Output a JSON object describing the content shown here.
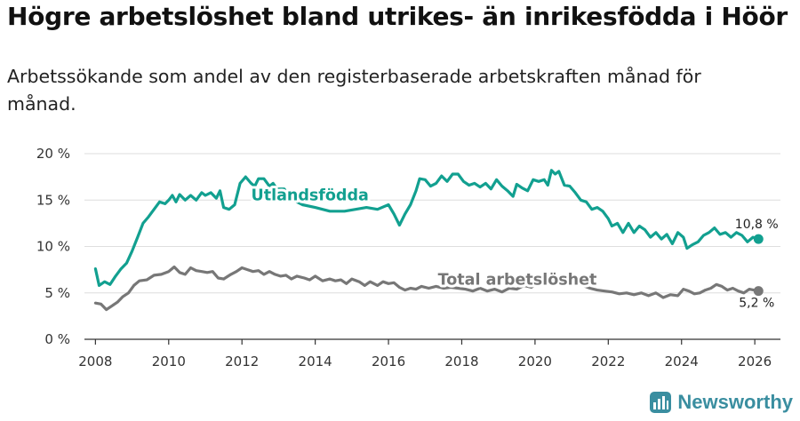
{
  "header": {
    "title": "Högre arbetslöshet bland utrikes- än inrikesfödda i Höör",
    "subtitle": "Arbetssökande som andel av den registerbaserade arbetskraften månad för månad."
  },
  "brand": {
    "name": "Newsworthy"
  },
  "colors": {
    "foreign": "#12a090",
    "total": "#777777",
    "grid": "#dedede",
    "axis": "#333333",
    "brand": "#3a8ea0"
  },
  "chart_data": {
    "type": "line",
    "title": "Högre arbetslöshet bland utrikes- än inrikesfödda i Höör",
    "xlabel": "",
    "ylabel": "",
    "xlim": [
      2007.7,
      2026.7
    ],
    "ylim": [
      0,
      20
    ],
    "x_ticks": [
      2008,
      2010,
      2012,
      2014,
      2016,
      2018,
      2020,
      2022,
      2024,
      2026
    ],
    "y_ticks": [
      0,
      5,
      10,
      15,
      20
    ],
    "y_tick_labels": [
      "0 %",
      "5 %",
      "10 %",
      "15 %",
      "20 %"
    ],
    "grid": true,
    "series": [
      {
        "name": "Utlandsfödda",
        "color": "#12a090",
        "points": [
          [
            2008.0,
            7.6
          ],
          [
            2008.1,
            5.8
          ],
          [
            2008.25,
            6.2
          ],
          [
            2008.4,
            5.9
          ],
          [
            2008.55,
            6.8
          ],
          [
            2008.7,
            7.6
          ],
          [
            2008.85,
            8.2
          ],
          [
            2009.0,
            9.5
          ],
          [
            2009.15,
            11.0
          ],
          [
            2009.3,
            12.5
          ],
          [
            2009.45,
            13.2
          ],
          [
            2009.6,
            14.0
          ],
          [
            2009.75,
            14.8
          ],
          [
            2009.9,
            14.6
          ],
          [
            2010.0,
            15.0
          ],
          [
            2010.1,
            15.5
          ],
          [
            2010.2,
            14.8
          ],
          [
            2010.3,
            15.6
          ],
          [
            2010.45,
            15.0
          ],
          [
            2010.6,
            15.5
          ],
          [
            2010.75,
            15.0
          ],
          [
            2010.9,
            15.8
          ],
          [
            2011.0,
            15.5
          ],
          [
            2011.15,
            15.8
          ],
          [
            2011.3,
            15.2
          ],
          [
            2011.4,
            16.0
          ],
          [
            2011.5,
            14.2
          ],
          [
            2011.65,
            14.0
          ],
          [
            2011.8,
            14.5
          ],
          [
            2011.95,
            16.8
          ],
          [
            2012.1,
            17.5
          ],
          [
            2012.25,
            16.8
          ],
          [
            2012.35,
            16.5
          ],
          [
            2012.45,
            17.3
          ],
          [
            2012.6,
            17.3
          ],
          [
            2012.75,
            16.5
          ],
          [
            2012.85,
            16.8
          ],
          [
            2012.95,
            16.2
          ],
          [
            2013.15,
            16.2
          ],
          [
            2013.4,
            15.0
          ],
          [
            2013.65,
            14.5
          ],
          [
            2014.0,
            14.2
          ],
          [
            2014.4,
            13.8
          ],
          [
            2014.8,
            13.8
          ],
          [
            2015.1,
            14.0
          ],
          [
            2015.4,
            14.2
          ],
          [
            2015.7,
            14.0
          ],
          [
            2016.0,
            14.5
          ],
          [
            2016.15,
            13.5
          ],
          [
            2016.3,
            12.3
          ],
          [
            2016.45,
            13.5
          ],
          [
            2016.6,
            14.5
          ],
          [
            2016.75,
            16.0
          ],
          [
            2016.85,
            17.3
          ],
          [
            2017.0,
            17.2
          ],
          [
            2017.15,
            16.5
          ],
          [
            2017.3,
            16.8
          ],
          [
            2017.45,
            17.6
          ],
          [
            2017.6,
            17.0
          ],
          [
            2017.75,
            17.8
          ],
          [
            2017.9,
            17.8
          ],
          [
            2018.05,
            17.0
          ],
          [
            2018.2,
            16.6
          ],
          [
            2018.35,
            16.8
          ],
          [
            2018.5,
            16.4
          ],
          [
            2018.65,
            16.8
          ],
          [
            2018.8,
            16.2
          ],
          [
            2018.95,
            17.2
          ],
          [
            2019.1,
            16.5
          ],
          [
            2019.25,
            16.0
          ],
          [
            2019.4,
            15.4
          ],
          [
            2019.5,
            16.7
          ],
          [
            2019.65,
            16.3
          ],
          [
            2019.8,
            16.0
          ],
          [
            2019.95,
            17.2
          ],
          [
            2020.1,
            17.0
          ],
          [
            2020.25,
            17.2
          ],
          [
            2020.35,
            16.6
          ],
          [
            2020.45,
            18.2
          ],
          [
            2020.55,
            17.8
          ],
          [
            2020.65,
            18.1
          ],
          [
            2020.8,
            16.6
          ],
          [
            2020.95,
            16.5
          ],
          [
            2021.1,
            15.8
          ],
          [
            2021.25,
            15.0
          ],
          [
            2021.4,
            14.8
          ],
          [
            2021.55,
            14.0
          ],
          [
            2021.7,
            14.2
          ],
          [
            2021.85,
            13.8
          ],
          [
            2022.0,
            13.0
          ],
          [
            2022.1,
            12.2
          ],
          [
            2022.25,
            12.5
          ],
          [
            2022.4,
            11.5
          ],
          [
            2022.55,
            12.5
          ],
          [
            2022.7,
            11.5
          ],
          [
            2022.85,
            12.2
          ],
          [
            2023.0,
            11.8
          ],
          [
            2023.15,
            11.0
          ],
          [
            2023.3,
            11.5
          ],
          [
            2023.45,
            10.8
          ],
          [
            2023.6,
            11.3
          ],
          [
            2023.75,
            10.3
          ],
          [
            2023.9,
            11.5
          ],
          [
            2024.05,
            11.0
          ],
          [
            2024.15,
            9.8
          ],
          [
            2024.3,
            10.2
          ],
          [
            2024.45,
            10.5
          ],
          [
            2024.6,
            11.2
          ],
          [
            2024.75,
            11.5
          ],
          [
            2024.9,
            12.0
          ],
          [
            2025.05,
            11.3
          ],
          [
            2025.2,
            11.5
          ],
          [
            2025.35,
            11.0
          ],
          [
            2025.5,
            11.5
          ],
          [
            2025.65,
            11.2
          ],
          [
            2025.8,
            10.5
          ],
          [
            2025.95,
            11.0
          ],
          [
            2026.1,
            10.8
          ]
        ],
        "end_label": "10,8 %"
      },
      {
        "name": "Total arbetslöshet",
        "color": "#777777",
        "points": [
          [
            2008.0,
            3.9
          ],
          [
            2008.15,
            3.8
          ],
          [
            2008.3,
            3.2
          ],
          [
            2008.45,
            3.6
          ],
          [
            2008.6,
            4.0
          ],
          [
            2008.75,
            4.6
          ],
          [
            2008.9,
            5.0
          ],
          [
            2009.05,
            5.8
          ],
          [
            2009.2,
            6.3
          ],
          [
            2009.4,
            6.4
          ],
          [
            2009.6,
            6.9
          ],
          [
            2009.8,
            7.0
          ],
          [
            2010.0,
            7.3
          ],
          [
            2010.15,
            7.8
          ],
          [
            2010.3,
            7.2
          ],
          [
            2010.45,
            7.0
          ],
          [
            2010.6,
            7.7
          ],
          [
            2010.75,
            7.4
          ],
          [
            2010.9,
            7.3
          ],
          [
            2011.05,
            7.2
          ],
          [
            2011.2,
            7.3
          ],
          [
            2011.35,
            6.6
          ],
          [
            2011.5,
            6.5
          ],
          [
            2011.7,
            7.0
          ],
          [
            2011.85,
            7.3
          ],
          [
            2012.0,
            7.7
          ],
          [
            2012.15,
            7.5
          ],
          [
            2012.3,
            7.3
          ],
          [
            2012.45,
            7.4
          ],
          [
            2012.6,
            7.0
          ],
          [
            2012.75,
            7.3
          ],
          [
            2012.9,
            7.0
          ],
          [
            2013.05,
            6.8
          ],
          [
            2013.2,
            6.9
          ],
          [
            2013.35,
            6.5
          ],
          [
            2013.5,
            6.8
          ],
          [
            2013.7,
            6.6
          ],
          [
            2013.85,
            6.4
          ],
          [
            2014.0,
            6.8
          ],
          [
            2014.2,
            6.3
          ],
          [
            2014.4,
            6.5
          ],
          [
            2014.55,
            6.3
          ],
          [
            2014.7,
            6.4
          ],
          [
            2014.85,
            6.0
          ],
          [
            2015.0,
            6.5
          ],
          [
            2015.2,
            6.2
          ],
          [
            2015.35,
            5.8
          ],
          [
            2015.5,
            6.2
          ],
          [
            2015.7,
            5.8
          ],
          [
            2015.85,
            6.2
          ],
          [
            2016.0,
            6.0
          ],
          [
            2016.15,
            6.1
          ],
          [
            2016.3,
            5.6
          ],
          [
            2016.45,
            5.3
          ],
          [
            2016.6,
            5.5
          ],
          [
            2016.75,
            5.4
          ],
          [
            2016.9,
            5.7
          ],
          [
            2017.1,
            5.5
          ],
          [
            2017.3,
            5.7
          ],
          [
            2017.5,
            5.5
          ],
          [
            2017.7,
            5.6
          ],
          [
            2017.9,
            5.5
          ],
          [
            2018.1,
            5.4
          ],
          [
            2018.3,
            5.2
          ],
          [
            2018.5,
            5.5
          ],
          [
            2018.7,
            5.2
          ],
          [
            2018.9,
            5.4
          ],
          [
            2019.1,
            5.1
          ],
          [
            2019.3,
            5.5
          ],
          [
            2019.5,
            5.4
          ],
          [
            2019.7,
            5.8
          ],
          [
            2019.9,
            5.6
          ],
          [
            2020.1,
            6.2
          ],
          [
            2020.3,
            6.0
          ],
          [
            2020.5,
            6.5
          ],
          [
            2020.7,
            6.2
          ],
          [
            2020.9,
            6.4
          ],
          [
            2021.1,
            6.0
          ],
          [
            2021.3,
            5.8
          ],
          [
            2021.5,
            5.5
          ],
          [
            2021.7,
            5.3
          ],
          [
            2021.9,
            5.2
          ],
          [
            2022.1,
            5.1
          ],
          [
            2022.3,
            4.9
          ],
          [
            2022.5,
            5.0
          ],
          [
            2022.7,
            4.8
          ],
          [
            2022.9,
            5.0
          ],
          [
            2023.1,
            4.7
          ],
          [
            2023.3,
            5.0
          ],
          [
            2023.5,
            4.5
          ],
          [
            2023.7,
            4.8
          ],
          [
            2023.9,
            4.7
          ],
          [
            2024.05,
            5.4
          ],
          [
            2024.2,
            5.2
          ],
          [
            2024.35,
            4.9
          ],
          [
            2024.5,
            5.0
          ],
          [
            2024.65,
            5.3
          ],
          [
            2024.8,
            5.5
          ],
          [
            2024.95,
            5.9
          ],
          [
            2025.1,
            5.7
          ],
          [
            2025.25,
            5.3
          ],
          [
            2025.4,
            5.5
          ],
          [
            2025.55,
            5.2
          ],
          [
            2025.7,
            5.0
          ],
          [
            2025.85,
            5.4
          ],
          [
            2026.1,
            5.2
          ]
        ],
        "end_label": "5,2 %"
      }
    ]
  }
}
